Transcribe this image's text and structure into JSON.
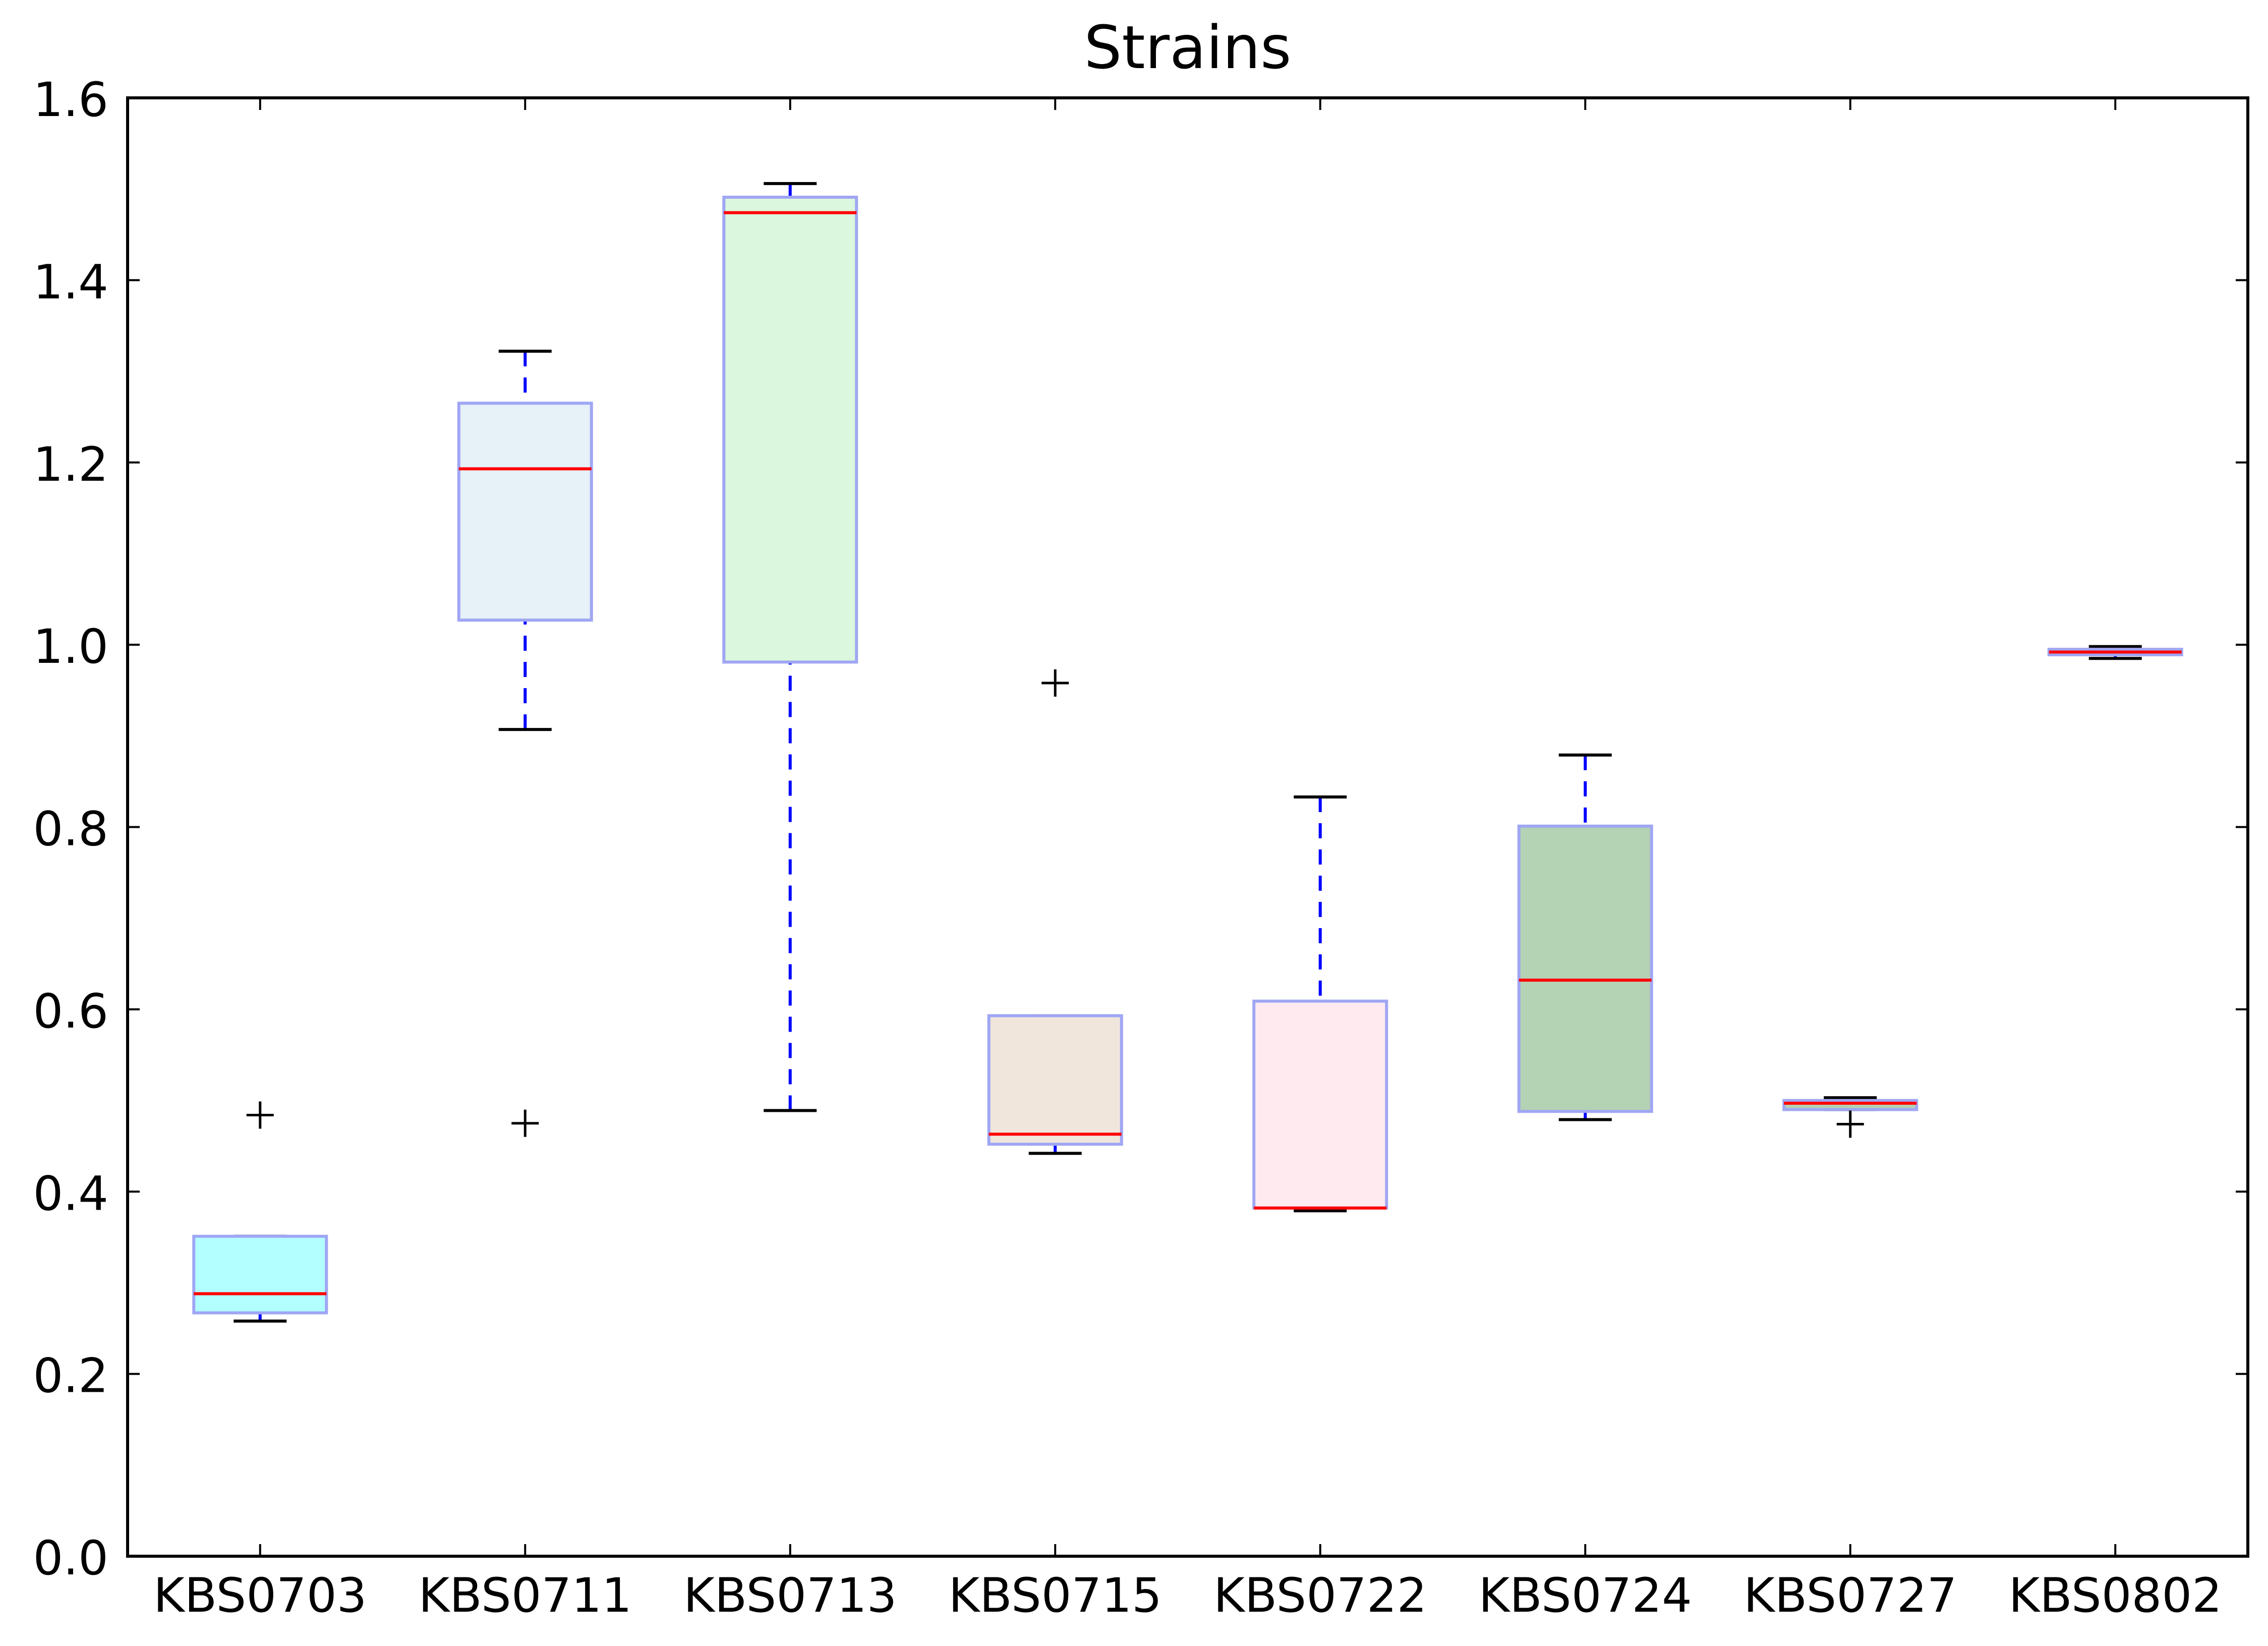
{
  "chart_data": {
    "type": "box",
    "title": "Strains",
    "xlabel": "",
    "ylabel": "",
    "ylim": [
      0,
      1.6
    ],
    "yticks": [
      "0.0",
      "0.2",
      "0.4",
      "0.6",
      "0.8",
      "1.0",
      "1.2",
      "1.4",
      "1.6"
    ],
    "grid": false,
    "categories": [
      "KBS0703",
      "KBS0711",
      "KBS0713",
      "KBS0715",
      "KBS0722",
      "KBS0724",
      "KBS0727",
      "KBS0802"
    ],
    "boxes": [
      {
        "name": "KBS0703",
        "whisker_low": 0.258,
        "q1": 0.267,
        "median": 0.288,
        "q3": 0.351,
        "whisker_high": 0.351,
        "outliers": [
          0.484
        ],
        "fill": "#b3ffff"
      },
      {
        "name": "KBS0711",
        "whisker_low": 0.907,
        "q1": 1.027,
        "median": 1.193,
        "q3": 1.265,
        "whisker_high": 1.322,
        "outliers": [
          0.475
        ],
        "fill": "#e6f1f8"
      },
      {
        "name": "KBS0713",
        "whisker_low": 0.489,
        "q1": 0.981,
        "median": 1.474,
        "q3": 1.491,
        "whisker_high": 1.506,
        "outliers": [],
        "fill": "#dbf7dd"
      },
      {
        "name": "KBS0715",
        "whisker_low": 0.442,
        "q1": 0.452,
        "median": 0.463,
        "q3": 0.593,
        "whisker_high": 0.593,
        "outliers": [
          0.958
        ],
        "fill": "#f0e6dc"
      },
      {
        "name": "KBS0722",
        "whisker_low": 0.379,
        "q1": 0.382,
        "median": 0.382,
        "q3": 0.609,
        "whisker_high": 0.833,
        "outliers": [],
        "fill": "#ffebef"
      },
      {
        "name": "KBS0724",
        "whisker_low": 0.479,
        "q1": 0.488,
        "median": 0.632,
        "q3": 0.801,
        "whisker_high": 0.879,
        "outliers": [],
        "fill": "#b4d2b4"
      },
      {
        "name": "KBS0727",
        "whisker_low": 0.49,
        "q1": 0.49,
        "median": 0.497,
        "q3": 0.5,
        "whisker_high": 0.503,
        "outliers": [
          0.474
        ],
        "fill": "#b4d2b4"
      },
      {
        "name": "KBS0802",
        "whisker_low": 0.985,
        "q1": 0.989,
        "median": 0.992,
        "q3": 0.995,
        "whisker_high": 0.998,
        "outliers": [],
        "fill": "#b4d2b4"
      }
    ],
    "colors": {
      "box_edge": "#a0a6f4",
      "median": "#ff0000",
      "whisker": "#0000ff",
      "cap": "#000000",
      "flier": "#000000"
    }
  }
}
